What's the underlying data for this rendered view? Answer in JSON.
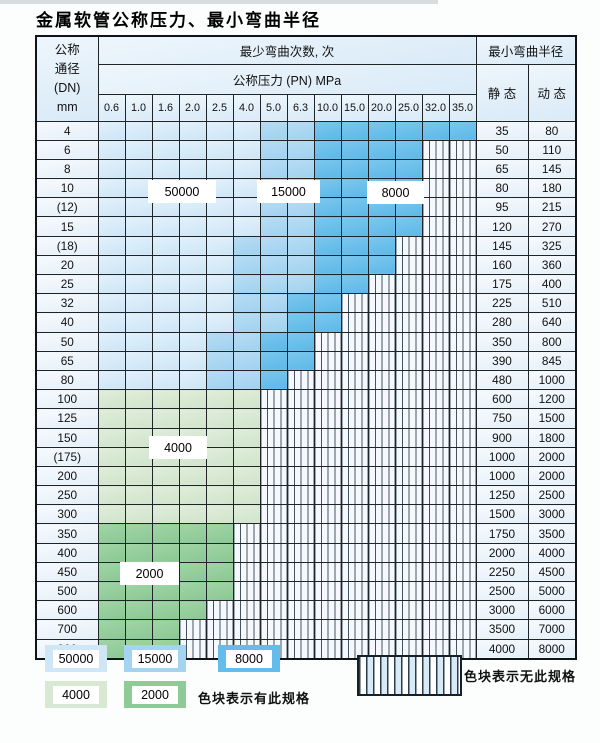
{
  "title": "金属软管公称压力、最小弯曲半径",
  "table": {
    "corner": {
      "line1": "公称",
      "line2": "通径",
      "line3": "(DN)",
      "line4": "mm"
    },
    "bend_cycles_header": "最少弯曲次数, 次",
    "pressure_header": "公称压力 (PN) MPa",
    "radius_header": "最小弯曲半径",
    "static_header": "静 态",
    "dynamic_header": "动 态",
    "pressure_columns": [
      "0.6",
      "1.0",
      "1.6",
      "2.0",
      "2.5",
      "4.0",
      "5.0",
      "6.3",
      "10.0",
      "15.0",
      "20.0",
      "25.0",
      "32.0",
      "35.0"
    ],
    "rows": [
      {
        "dn": "4",
        "cells": "LLLLLLMMDDDDDD",
        "static": "35",
        "dynamic": "80"
      },
      {
        "dn": "6",
        "cells": "LLLLLLMMDDDDHH",
        "static": "50",
        "dynamic": "110"
      },
      {
        "dn": "8",
        "cells": "LLLLLLMMDDDDHH",
        "static": "65",
        "dynamic": "145"
      },
      {
        "dn": "10",
        "cells": "LLLLLLMMDDDDHH",
        "static": "80",
        "dynamic": "180"
      },
      {
        "dn": "(12)",
        "cells": "LLLLLLMMDDDDHH",
        "static": "95",
        "dynamic": "215"
      },
      {
        "dn": "15",
        "cells": "LLLLLLMMDDDDHH",
        "static": "120",
        "dynamic": "270"
      },
      {
        "dn": "(18)",
        "cells": "LLLLLMMMDDDHHH",
        "static": "145",
        "dynamic": "325"
      },
      {
        "dn": "20",
        "cells": "LLLLLMMMDDDHHH",
        "static": "160",
        "dynamic": "360"
      },
      {
        "dn": "25",
        "cells": "LLLLLMMMDDHHHH",
        "static": "175",
        "dynamic": "400"
      },
      {
        "dn": "32",
        "cells": "LLLLLMMDDHHHHH",
        "static": "225",
        "dynamic": "510"
      },
      {
        "dn": "40",
        "cells": "LLLLLMMDDHHHHH",
        "static": "280",
        "dynamic": "640"
      },
      {
        "dn": "50",
        "cells": "LLLLMMDDHHHHHH",
        "static": "350",
        "dynamic": "800"
      },
      {
        "dn": "65",
        "cells": "LLLLMMDDHHHHHH",
        "static": "390",
        "dynamic": "845"
      },
      {
        "dn": "80",
        "cells": "LLLLMMDHHHHHHH",
        "static": "480",
        "dynamic": "1000"
      },
      {
        "dn": "100",
        "cells": "GGGGGGHHHHHHHH",
        "static": "600",
        "dynamic": "1200"
      },
      {
        "dn": "125",
        "cells": "GGGGGGHHHHHHHH",
        "static": "750",
        "dynamic": "1500"
      },
      {
        "dn": "150",
        "cells": "GGGGGGHHHHHHHH",
        "static": "900",
        "dynamic": "1800"
      },
      {
        "dn": "(175)",
        "cells": "GGGGGGHHHHHHHH",
        "static": "1000",
        "dynamic": "2000"
      },
      {
        "dn": "200",
        "cells": "GGGGGGHHHHHHHH",
        "static": "1000",
        "dynamic": "2000"
      },
      {
        "dn": "250",
        "cells": "GGGGGGHHHHHHHH",
        "static": "1250",
        "dynamic": "2500"
      },
      {
        "dn": "300",
        "cells": "GGGGGGHHHHHHHH",
        "static": "1500",
        "dynamic": "3000"
      },
      {
        "dn": "350",
        "cells": "EEEEEHHHHHHHHH",
        "static": "1750",
        "dynamic": "3500"
      },
      {
        "dn": "400",
        "cells": "EEEEEHHHHHHHHH",
        "static": "2000",
        "dynamic": "4000"
      },
      {
        "dn": "450",
        "cells": "EEEEEHHHHHHHHH",
        "static": "2250",
        "dynamic": "4500"
      },
      {
        "dn": "500",
        "cells": "EEEEEHHHHHHHHH",
        "static": "2500",
        "dynamic": "5000"
      },
      {
        "dn": "600",
        "cells": "EEEEHHHHHHHHHH",
        "static": "3000",
        "dynamic": "6000"
      },
      {
        "dn": "700",
        "cells": "EEEHHHHHHHHHHH",
        "static": "3500",
        "dynamic": "7000"
      },
      {
        "dn": "800",
        "cells": "EEEHHHHHHHHHHH",
        "static": "4000",
        "dynamic": "8000"
      }
    ]
  },
  "overlays": [
    {
      "text": "50000"
    },
    {
      "text": "15000"
    },
    {
      "text": "8000"
    },
    {
      "text": "4000"
    },
    {
      "text": "2000"
    }
  ],
  "legend": {
    "items": [
      {
        "label": "50000"
      },
      {
        "label": "15000"
      },
      {
        "label": "8000"
      },
      {
        "label": "4000"
      },
      {
        "label": "2000"
      }
    ],
    "has_spec_note": "色块表示有此规格",
    "no_spec_note": "色块表示无此规格"
  },
  "colors": {
    "cycles_50000": "#cfe6f7",
    "cycles_15000": "#a5d4f1",
    "cycles_8000": "#63bce9",
    "cycles_4000": "#d7e9d2",
    "cycles_2000": "#8fcb97",
    "grid_line": "#1f2428"
  },
  "chart_data": {
    "type": "heatmap",
    "title": "金属软管公称压力、最小弯曲半径",
    "x_label": "公称压力 (PN) MPa",
    "y_label": "公称通径 (DN) mm",
    "pressures_MPa": [
      0.6,
      1.0,
      1.6,
      2.0,
      2.5,
      4.0,
      5.0,
      6.3,
      10.0,
      15.0,
      20.0,
      25.0,
      32.0,
      35.0
    ],
    "dn_mm": [
      "4",
      "6",
      "8",
      "10",
      "(12)",
      "15",
      "(18)",
      "20",
      "25",
      "32",
      "40",
      "50",
      "65",
      "80",
      "100",
      "125",
      "150",
      "(175)",
      "200",
      "250",
      "300",
      "350",
      "400",
      "450",
      "500",
      "600",
      "700",
      "800"
    ],
    "cell_code_legend": {
      "L": 50000,
      "M": 15000,
      "D": 8000,
      "G": 4000,
      "E": 2000,
      "H": null
    },
    "min_bend_cycles_codes": [
      "LLLLLLMMDDDDDD",
      "LLLLLLMMDDDDHH",
      "LLLLLLMMDDDDHH",
      "LLLLLLMMDDDDHH",
      "LLLLLLMMDDDDHH",
      "LLLLLLMMDDDDHH",
      "LLLLLMMMDDDHHH",
      "LLLLLMMMDDDHHH",
      "LLLLLMMMDDHHHH",
      "LLLLLMMDDHHHHH",
      "LLLLLMMDDHHHHH",
      "LLLLMMDDHHHHHH",
      "LLLLMMDDHHHHHH",
      "LLLLMMDHHHHHHH",
      "GGGGGGHHHHHHHH",
      "GGGGGGHHHHHHHH",
      "GGGGGGHHHHHHHH",
      "GGGGGGHHHHHHHH",
      "GGGGGGHHHHHHHH",
      "GGGGGGHHHHHHHH",
      "GGGGGGHHHHHHHH",
      "EEEEEHHHHHHHHH",
      "EEEEEHHHHHHHHH",
      "EEEEEHHHHHHHHH",
      "EEEEEHHHHHHHHH",
      "EEEEHHHHHHHHHH",
      "EEEHHHHHHHHHHH",
      "EEEHHHHHHHHHHH"
    ],
    "min_bend_radius_static_mm": [
      35,
      50,
      65,
      80,
      95,
      120,
      145,
      160,
      175,
      225,
      280,
      350,
      390,
      480,
      600,
      750,
      900,
      1000,
      1000,
      1250,
      1500,
      1750,
      2000,
      2250,
      2500,
      3000,
      3500,
      4000
    ],
    "min_bend_radius_dynamic_mm": [
      80,
      110,
      145,
      180,
      215,
      270,
      325,
      360,
      400,
      510,
      640,
      800,
      845,
      1000,
      1200,
      1500,
      1800,
      2000,
      2000,
      2500,
      3000,
      3500,
      4000,
      4500,
      5000,
      6000,
      7000,
      8000
    ]
  }
}
